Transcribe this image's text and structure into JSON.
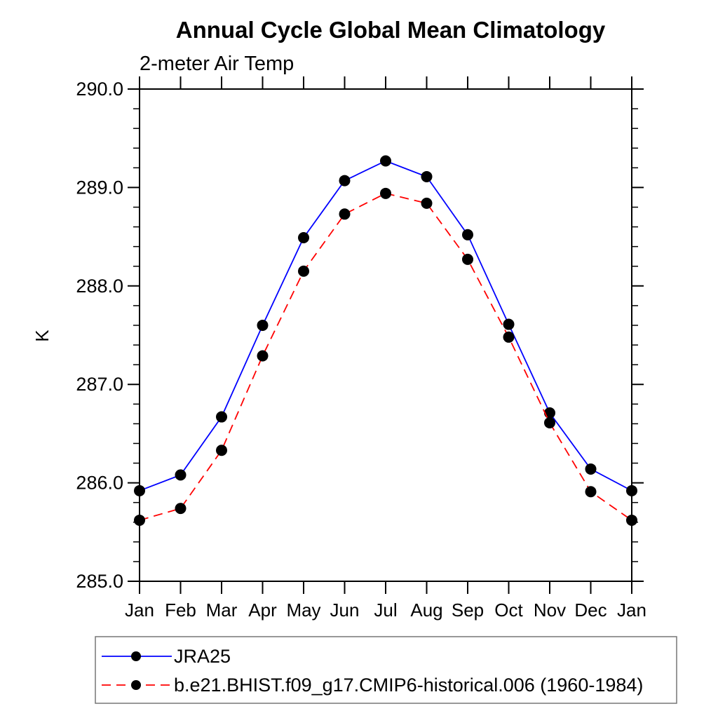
{
  "chart_data": {
    "type": "line",
    "title": "Annual Cycle Global Mean Climatology",
    "subtitle": "2-meter Air Temp",
    "ylabel": "K",
    "categories": [
      "Jan",
      "Feb",
      "Mar",
      "Apr",
      "May",
      "Jun",
      "Jul",
      "Aug",
      "Sep",
      "Oct",
      "Nov",
      "Dec",
      "Jan"
    ],
    "series": [
      {
        "name": "JRA25",
        "color": "#0000ff",
        "line_style": "solid",
        "marker": "filled-circle",
        "marker_color": "#000000",
        "values": [
          285.92,
          286.08,
          286.67,
          287.6,
          288.49,
          289.07,
          289.27,
          289.11,
          288.52,
          287.61,
          286.71,
          286.14,
          285.92
        ]
      },
      {
        "name": "b.e21.BHIST.f09_g17.CMIP6-historical.006 (1960-1984)",
        "color": "#ff0000",
        "line_style": "dashed",
        "marker": "filled-circle",
        "marker_color": "#000000",
        "values": [
          285.62,
          285.74,
          286.33,
          287.29,
          288.15,
          288.73,
          288.94,
          288.84,
          288.27,
          287.48,
          286.61,
          285.91,
          285.62
        ]
      }
    ],
    "ylim": [
      285.0,
      290.0
    ],
    "y_major_tick_interval": 1.0,
    "y_minor_tick_interval": 0.2,
    "y_tick_labels": [
      "285.0",
      "286.0",
      "287.0",
      "288.0",
      "289.0",
      "290.0"
    ],
    "grid": false,
    "legend_position": "bottom-left-box",
    "axis_color": "#000000",
    "text_color": "#000000",
    "background_color": "#ffffff"
  }
}
